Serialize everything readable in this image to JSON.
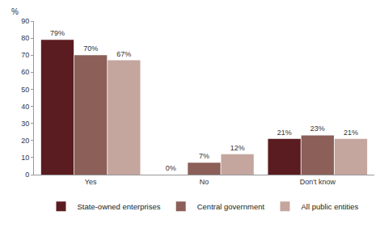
{
  "chart_data": {
    "type": "bar",
    "y_label": "%",
    "categories": [
      "Yes",
      "No",
      "Don't know"
    ],
    "series": [
      {
        "name": "State-owned enterprises",
        "color": "#5a1c20",
        "values": [
          79,
          0,
          21
        ],
        "value_labels": [
          "79%",
          "0%",
          "21%"
        ]
      },
      {
        "name": "Central government",
        "color": "#8c5f58",
        "values": [
          70,
          7,
          23
        ],
        "value_labels": [
          "70%",
          "7%",
          "23%"
        ]
      },
      {
        "name": "All public entities",
        "color": "#c4a69f",
        "values": [
          67,
          12,
          21
        ],
        "value_labels": [
          "67%",
          "12%",
          "21%"
        ]
      }
    ],
    "ylim": [
      0,
      90
    ],
    "yticks": [
      0,
      10,
      20,
      30,
      40,
      50,
      60,
      70,
      80,
      90
    ],
    "grid": false,
    "legend": "bottom",
    "data_labels": true
  }
}
